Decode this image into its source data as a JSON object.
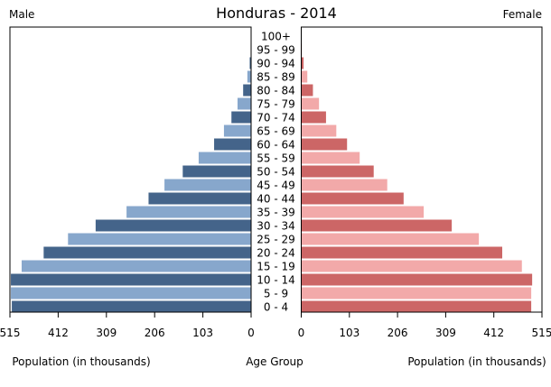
{
  "chart_data": {
    "type": "bar",
    "orientation": "horizontal",
    "subtype": "population-pyramid",
    "title": "Honduras - 2014",
    "left_label": "Male",
    "right_label": "Female",
    "xlabel_left": "Population (in thousands)",
    "xlabel_center": "Age Group",
    "xlabel_right": "Population (in thousands)",
    "xlim": [
      0,
      515
    ],
    "ticks": [
      0,
      103,
      206,
      309,
      412,
      515
    ],
    "grid": false,
    "categories": [
      "0 - 4",
      "5 - 9",
      "10 - 14",
      "15 - 19",
      "20 - 24",
      "25 - 29",
      "30 - 34",
      "35 - 39",
      "40 - 44",
      "45 - 49",
      "50 - 54",
      "55 - 59",
      "60 - 64",
      "65 - 69",
      "70 - 74",
      "75 - 79",
      "80 - 84",
      "85 - 89",
      "90 - 94",
      "95 - 99",
      "100+"
    ],
    "series": [
      {
        "name": "Male",
        "values": [
          511,
          513,
          513,
          490,
          443,
          391,
          332,
          266,
          219,
          185,
          146,
          112,
          79,
          58,
          42,
          29,
          17,
          8,
          3,
          1,
          0.3
        ],
        "colors": [
          "#44648a",
          "#87a7cc"
        ]
      },
      {
        "name": "Female",
        "values": [
          492,
          492,
          494,
          472,
          430,
          380,
          322,
          262,
          219,
          184,
          155,
          125,
          98,
          75,
          53,
          38,
          25,
          13,
          5,
          1.5,
          0.5
        ],
        "colors": [
          "#cc6666",
          "#f2a9a9"
        ]
      }
    ]
  }
}
